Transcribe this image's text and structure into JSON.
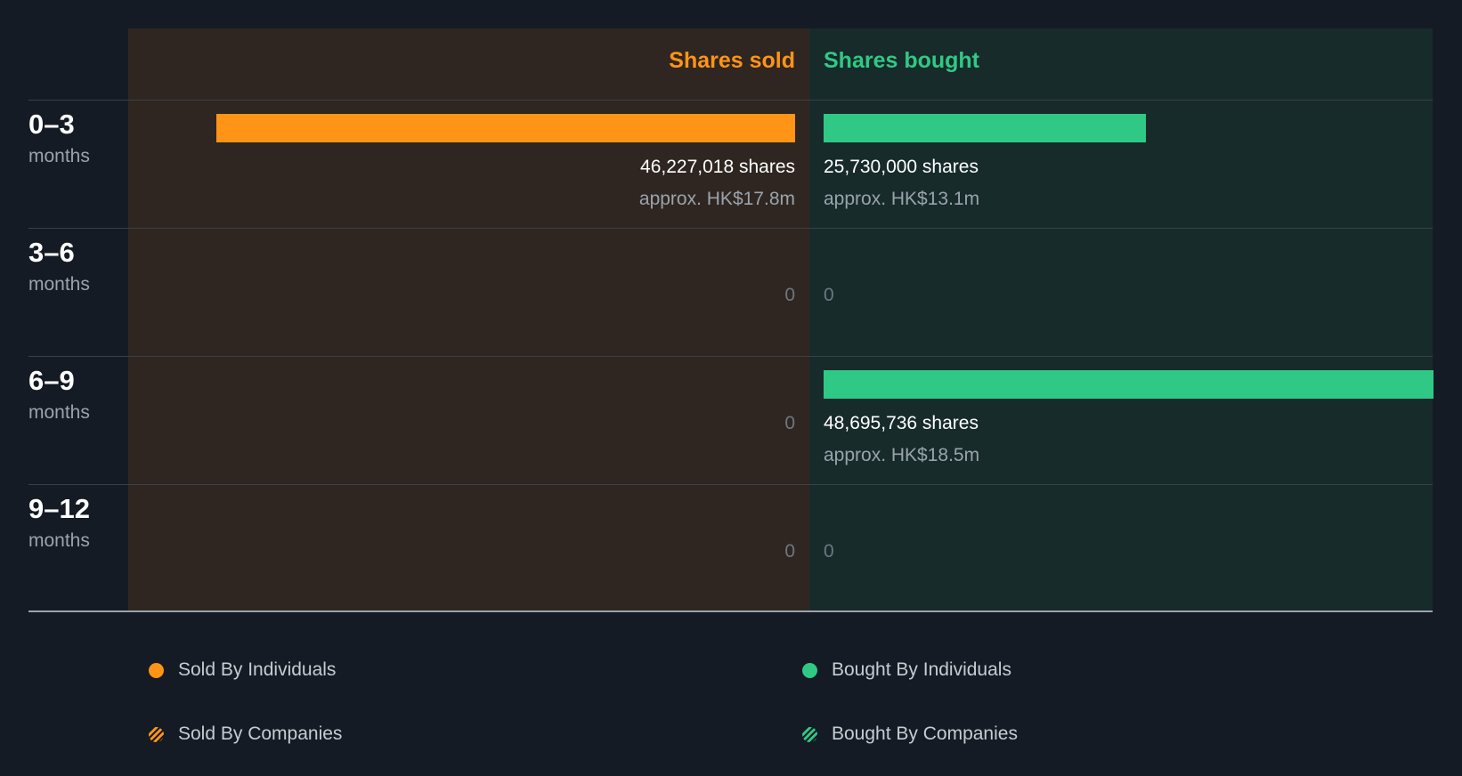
{
  "chart_data": {
    "type": "bar",
    "headers": {
      "sold": "Shares sold",
      "bought": "Shares bought"
    },
    "categories": [
      {
        "range": "0–3",
        "unit": "months"
      },
      {
        "range": "3–6",
        "unit": "months"
      },
      {
        "range": "6–9",
        "unit": "months"
      },
      {
        "range": "9–12",
        "unit": "months"
      }
    ],
    "series": [
      {
        "name": "Shares sold",
        "values": [
          46227018,
          0,
          0,
          0
        ],
        "labels": [
          "46,227,018 shares",
          "0",
          "0",
          "0"
        ],
        "approx": [
          "approx. HK$17.8m",
          "",
          "",
          ""
        ]
      },
      {
        "name": "Shares bought",
        "values": [
          25730000,
          0,
          48695736,
          0
        ],
        "labels": [
          "25,730,000 shares",
          "0",
          "48,695,736 shares",
          "0"
        ],
        "approx": [
          "approx. HK$13.1m",
          "",
          "approx. HK$18.5m",
          ""
        ]
      }
    ],
    "legend": [
      {
        "label": "Sold By Individuals",
        "marker": "dot",
        "color": "#ff9416"
      },
      {
        "label": "Bought By Individuals",
        "marker": "dot",
        "color": "#2fc985"
      },
      {
        "label": "Sold By Companies",
        "marker": "hatched-dot",
        "color": "#ff9416"
      },
      {
        "label": "Bought By Companies",
        "marker": "hatched-dot",
        "color": "#2fc985"
      }
    ],
    "colors": {
      "sold": "#ff9416",
      "bought": "#2fc985",
      "sold_panel": "#2f2621",
      "bought_panel": "#172b2a",
      "background": "#151b24"
    }
  }
}
